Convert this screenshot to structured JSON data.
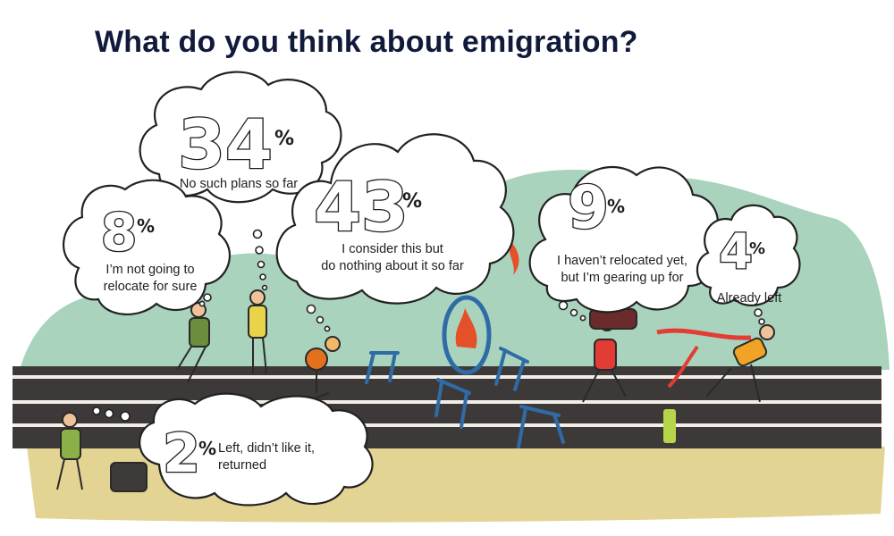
{
  "title": "What do you think about emigration?",
  "chart_data": {
    "type": "pie",
    "title": "What do you think about emigration?",
    "unit": "%",
    "categories": [
      "No such plans so far",
      "I'm not going to relocate for sure",
      "I consider this but do nothing about it so far",
      "I haven't relocated yet, but I'm gearing up for",
      "Already left",
      "Left, didn't like it, returned"
    ],
    "values": [
      34,
      8,
      43,
      9,
      4,
      2
    ],
    "labels": [
      [
        "No such plans so far"
      ],
      [
        "I’m not going to",
        "relocate for sure"
      ],
      [
        "I consider this but",
        "do nothing about it so far"
      ],
      [
        "I haven’t relocated yet,",
        "but I’m gearing up for"
      ],
      [
        "Already left"
      ],
      [
        "Left, didn’t like it,",
        "returned"
      ]
    ],
    "percent_sign": "%"
  },
  "colors": {
    "title": "#111a3b",
    "background_hill": "#a9d3bd",
    "track": "#3d3938",
    "track_lines": "#f2ede6",
    "ground": "#e3d494",
    "hurdle": "#2f6ca6",
    "fire": "#e4502a"
  }
}
